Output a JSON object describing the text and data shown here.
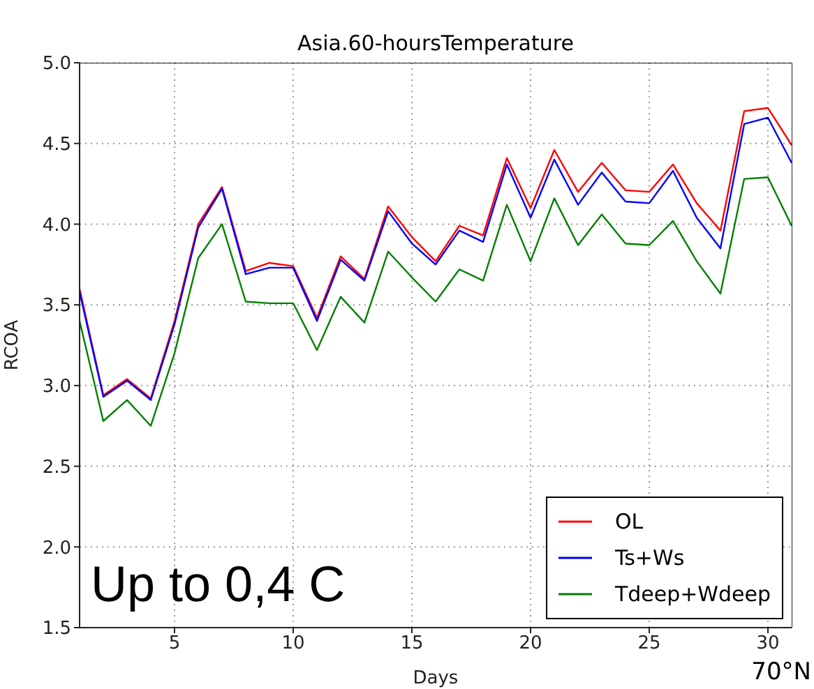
{
  "chart_data": {
    "type": "line",
    "title": "Asia.60-hoursTemperature",
    "xlabel": "Days",
    "ylabel": "RCOA",
    "x": [
      1,
      2,
      3,
      4,
      5,
      6,
      7,
      8,
      9,
      10,
      11,
      12,
      13,
      14,
      15,
      16,
      17,
      18,
      19,
      20,
      21,
      22,
      23,
      24,
      25,
      26,
      27,
      28,
      29,
      30,
      31
    ],
    "series": [
      {
        "name": "OL",
        "color": "#ff0000",
        "values": [
          3.6,
          2.94,
          3.04,
          2.92,
          3.4,
          4.0,
          4.23,
          3.71,
          3.76,
          3.74,
          3.42,
          3.8,
          3.66,
          4.11,
          3.92,
          3.77,
          3.99,
          3.93,
          4.41,
          4.1,
          4.46,
          4.2,
          4.38,
          4.21,
          4.2,
          4.37,
          4.13,
          3.96,
          4.7,
          4.72,
          4.49
        ]
      },
      {
        "name": "Ts+Ws",
        "color": "#0000ff",
        "values": [
          3.58,
          2.93,
          3.03,
          2.91,
          3.38,
          3.98,
          4.22,
          3.69,
          3.73,
          3.73,
          3.4,
          3.78,
          3.65,
          4.08,
          3.88,
          3.75,
          3.96,
          3.89,
          4.37,
          4.04,
          4.4,
          4.12,
          4.32,
          4.14,
          4.13,
          4.33,
          4.04,
          3.85,
          4.62,
          4.66,
          4.38
        ]
      },
      {
        "name": "Tdeep+Wdeep",
        "color": "#008000",
        "values": [
          3.4,
          2.78,
          2.91,
          2.75,
          3.2,
          3.79,
          4.0,
          3.52,
          3.51,
          3.51,
          3.22,
          3.55,
          3.39,
          3.83,
          3.67,
          3.52,
          3.72,
          3.65,
          4.12,
          3.77,
          4.16,
          3.87,
          4.06,
          3.88,
          3.87,
          4.02,
          3.77,
          3.57,
          4.28,
          4.29,
          3.99
        ]
      }
    ],
    "xlim": [
      1,
      31
    ],
    "xticks": [
      5,
      10,
      15,
      20,
      25,
      30
    ],
    "ylim": [
      1.5,
      5.0
    ],
    "yticks": [
      {
        "value": 1.5,
        "label": "1.5"
      },
      {
        "value": 2.0,
        "label": "2.0"
      },
      {
        "value": 2.5,
        "label": "2.5"
      },
      {
        "value": 3.0,
        "label": "3.0"
      },
      {
        "value": 3.5,
        "label": "3.5"
      },
      {
        "value": 4.0,
        "label": "4.0"
      },
      {
        "value": 4.5,
        "label": "4.5"
      },
      {
        "value": 5.0,
        "label": "5.0"
      }
    ],
    "grid": true,
    "legend": "bottom right",
    "marker": "none",
    "line_style": "solid",
    "annotations": [
      "Up to 0,4 C",
      "70°N"
    ]
  }
}
